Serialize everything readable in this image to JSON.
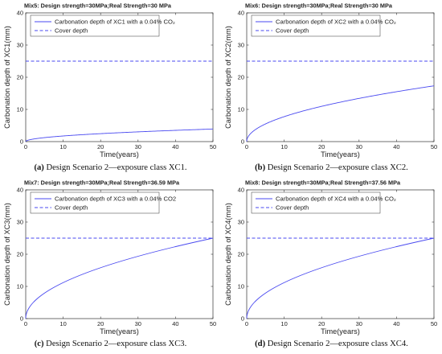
{
  "chart_data": [
    {
      "type": "line",
      "title": "Mix5: Design strength=30MPa;Real Strength=30 MPa",
      "xlabel": "Time(years)",
      "ylabel": "Carbonation depth of XC1(mm)",
      "xlim": [
        0,
        50
      ],
      "ylim": [
        0,
        40
      ],
      "xticks": [
        "0",
        "10",
        "20",
        "30",
        "40",
        "50"
      ],
      "yticks": [
        "0",
        "10",
        "20",
        "30",
        "40"
      ],
      "legend_position": "top-left",
      "grid": false,
      "series": [
        {
          "name": "Carbonation depth of XC1 with a 0.04% CO₂",
          "style": "solid",
          "color": "#4a4af0",
          "x": [
            0,
            1,
            5,
            10,
            20,
            30,
            40,
            50
          ],
          "y": [
            0,
            0.55,
            1.24,
            1.75,
            2.47,
            3.03,
            3.5,
            3.91
          ]
        },
        {
          "name": "Cover depth",
          "style": "dashed",
          "color": "#4a4af0",
          "x": [
            0,
            50
          ],
          "y": [
            25,
            25
          ]
        }
      ],
      "caption_label": "(a)",
      "caption_text": " Design Scenario 2—exposure class XC1."
    },
    {
      "type": "line",
      "title": "Mix6: Design strength=30MPa;Real Strength=30 MPa",
      "xlabel": "Time(years)",
      "ylabel": "Carbonation depth of XC2(mm)",
      "xlim": [
        0,
        50
      ],
      "ylim": [
        0,
        40
      ],
      "xticks": [
        "0",
        "10",
        "20",
        "30",
        "40",
        "50"
      ],
      "yticks": [
        "0",
        "10",
        "20",
        "30",
        "40"
      ],
      "legend_position": "top-left",
      "grid": false,
      "series": [
        {
          "name": "Carbonation depth of XC2 with a 0.04% CO₂",
          "style": "solid",
          "color": "#4a4af0",
          "x": [
            0,
            1,
            5,
            10,
            20,
            30,
            40,
            50
          ],
          "y": [
            0,
            2.45,
            5.48,
            7.75,
            10.96,
            13.42,
            15.5,
            17.33
          ]
        },
        {
          "name": "Cover depth",
          "style": "dashed",
          "color": "#4a4af0",
          "x": [
            0,
            50
          ],
          "y": [
            25,
            25
          ]
        }
      ],
      "caption_label": "(b)",
      "caption_text": " Design Scenario 2—exposure class XC2."
    },
    {
      "type": "line",
      "title": "Mix7: Design strength=30MPa;Real Strength=36.59 MPa",
      "xlabel": "Time(years)",
      "ylabel": "Carbonation depth of XC3(mm)",
      "xlim": [
        0,
        50
      ],
      "ylim": [
        0,
        40
      ],
      "xticks": [
        "0",
        "10",
        "20",
        "30",
        "40",
        "50"
      ],
      "yticks": [
        "0",
        "10",
        "20",
        "30",
        "40"
      ],
      "legend_position": "top-left",
      "grid": false,
      "series": [
        {
          "name": "Carbonation depth of XC3 with a 0.04% CO2",
          "style": "solid",
          "color": "#4a4af0",
          "x": [
            0,
            1,
            5,
            10,
            20,
            30,
            40,
            50
          ],
          "y": [
            0,
            3.54,
            7.91,
            11.18,
            15.81,
            19.36,
            22.36,
            25.0
          ]
        },
        {
          "name": "Cover depth",
          "style": "dashed",
          "color": "#4a4af0",
          "x": [
            0,
            50
          ],
          "y": [
            25,
            25
          ]
        }
      ],
      "caption_label": "(c)",
      "caption_text": " Design Scenario 2—exposure class XC3."
    },
    {
      "type": "line",
      "title": "Mix8: Design strength=30MPa;Real Strength=37.56 MPa",
      "xlabel": "Time(years)",
      "ylabel": "Carbonation depth of XC4(mm)",
      "xlim": [
        0,
        50
      ],
      "ylim": [
        0,
        40
      ],
      "xticks": [
        "0",
        "10",
        "20",
        "30",
        "40",
        "50"
      ],
      "yticks": [
        "0",
        "10",
        "20",
        "30",
        "40"
      ],
      "legend_position": "top-left",
      "grid": false,
      "series": [
        {
          "name": "Carbonation depth of XC4 with a 0.04% CO₂",
          "style": "solid",
          "color": "#4a4af0",
          "x": [
            0,
            1,
            5,
            10,
            20,
            30,
            40,
            50
          ],
          "y": [
            0,
            3.54,
            7.91,
            11.18,
            15.81,
            19.36,
            22.36,
            25.0
          ]
        },
        {
          "name": "Cover depth",
          "style": "dashed",
          "color": "#4a4af0",
          "x": [
            0,
            50
          ],
          "y": [
            25,
            25
          ]
        }
      ],
      "caption_label": "(d)",
      "caption_text": " Design Scenario 2—exposure class XC4."
    }
  ]
}
